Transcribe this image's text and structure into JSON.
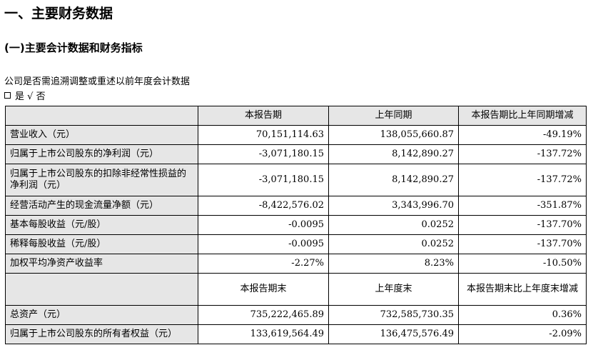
{
  "headings": {
    "h1": "一、主要财务数据",
    "h2": "(一)主要会计数据和财务指标"
  },
  "note": "公司是否需追溯调整或重述以前年度会计数据",
  "choice": {
    "yes": "是",
    "check": "√",
    "no": "否"
  },
  "table": {
    "header1": [
      "",
      "本报告期",
      "上年同期",
      "本报告期比上年同期增减"
    ],
    "rows1": [
      [
        "营业收入（元）",
        "70,151,114.63",
        "138,055,660.87",
        "-49.19%"
      ],
      [
        "归属于上市公司股东的净利润（元）",
        "-3,071,180.15",
        "8,142,890.27",
        "-137.72%"
      ],
      [
        "归属于上市公司股东的扣除非经常性损益的净利润（元）",
        "-3,071,180.15",
        "8,142,890.27",
        "-137.72%"
      ],
      [
        "经营活动产生的现金流量净额（元）",
        "-8,422,576.02",
        "3,343,996.70",
        "-351.87%"
      ],
      [
        "基本每股收益（元/股）",
        "-0.0095",
        "0.0252",
        "-137.70%"
      ],
      [
        "稀释每股收益（元/股）",
        "-0.0095",
        "0.0252",
        "-137.70%"
      ],
      [
        "加权平均净资产收益率",
        "-2.27%",
        "8.23%",
        "-10.50%"
      ]
    ],
    "header2": [
      "",
      "本报告期末",
      "上年度末",
      "本报告期末比上年度末增减"
    ],
    "rows2": [
      [
        "总资产（元）",
        "735,222,465.89",
        "732,585,730.35",
        "0.36%"
      ],
      [
        "归属于上市公司股东的所有者权益（元）",
        "133,619,564.49",
        "136,475,576.49",
        "-2.09%"
      ]
    ]
  }
}
